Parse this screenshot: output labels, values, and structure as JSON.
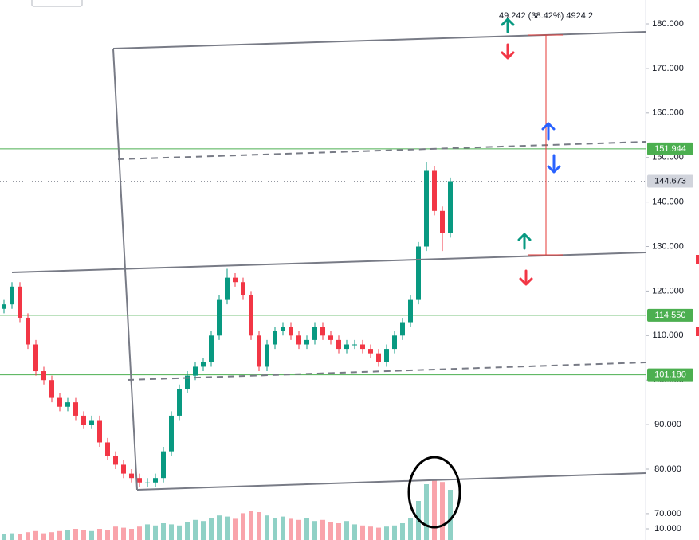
{
  "chart_data": {
    "type": "candlestick",
    "ylim": [
      64.08,
      185.37
    ],
    "yticks": [
      {
        "value": 180,
        "label": "180.000"
      },
      {
        "value": 170,
        "label": "170.000"
      },
      {
        "value": 160,
        "label": "160.000"
      },
      {
        "value": 150,
        "label": "150.000"
      },
      {
        "value": 140,
        "label": "140.000"
      },
      {
        "value": 130,
        "label": "130.000"
      },
      {
        "value": 120,
        "label": "120.000"
      },
      {
        "value": 110,
        "label": "110.000"
      },
      {
        "value": 100,
        "label": "100.000"
      },
      {
        "value": 90,
        "label": "90.000"
      },
      {
        "value": 80,
        "label": "80.000"
      },
      {
        "value": 70,
        "label": "70.000"
      }
    ],
    "vol_lim": [
      0,
      100
    ],
    "vol_ticks": [
      {
        "value": 10,
        "label": "10.000"
      }
    ],
    "up_color": "#089981",
    "down_color": "#f23645",
    "open": [
      116,
      117,
      121,
      114,
      108,
      102,
      100,
      96,
      94,
      95,
      92,
      90,
      91,
      86,
      83,
      81,
      79,
      78,
      77,
      77,
      78,
      84,
      92,
      98,
      101,
      103,
      104,
      110,
      118,
      123,
      122,
      119,
      110,
      103,
      108,
      111,
      112,
      110,
      108,
      109,
      112,
      110,
      109,
      107,
      108,
      108,
      107,
      106,
      104,
      107,
      110,
      113,
      118,
      130,
      147,
      138,
      133
    ],
    "high": [
      118,
      122,
      122,
      115,
      109,
      103,
      101,
      97,
      96,
      96,
      93,
      92,
      92,
      87,
      84,
      82,
      80,
      79,
      78,
      79,
      85,
      93,
      99,
      102,
      104,
      105,
      111,
      119,
      125,
      124,
      123,
      120,
      111,
      109,
      112,
      113,
      113,
      111,
      110,
      113,
      113,
      111,
      110,
      109,
      109,
      109,
      108,
      107,
      108,
      111,
      114,
      119,
      131,
      149,
      148,
      139,
      145.5
    ],
    "low": [
      115,
      116,
      113,
      107,
      101,
      99,
      95,
      93,
      93,
      91,
      89,
      89,
      85,
      82,
      80,
      78,
      77,
      76,
      76,
      76,
      77,
      83,
      91,
      97,
      100,
      102,
      103,
      109,
      117,
      121,
      118,
      109,
      102,
      102,
      107,
      110,
      109,
      107,
      107,
      108,
      109,
      108,
      106,
      106,
      107,
      106,
      105,
      103,
      103,
      106,
      109,
      112,
      117,
      129,
      137,
      129,
      132
    ],
    "close": [
      117,
      121,
      114,
      108,
      102,
      100,
      96,
      94,
      95,
      92,
      90,
      91,
      86,
      83,
      81,
      79,
      78,
      77,
      77,
      78,
      84,
      92,
      98,
      101,
      103,
      104,
      110,
      118,
      123,
      122,
      119,
      110,
      103,
      108,
      111,
      112,
      110,
      108,
      109,
      112,
      110,
      109,
      107,
      108,
      108,
      107,
      106,
      104,
      107,
      110,
      113,
      118,
      130,
      147,
      138,
      133,
      144.673
    ],
    "volume": [
      5,
      6,
      5,
      7,
      8,
      6,
      7,
      8,
      9,
      10,
      9,
      8,
      10,
      9,
      12,
      11,
      10,
      12,
      14,
      13,
      15,
      14,
      13,
      16,
      18,
      17,
      20,
      22,
      21,
      19,
      24,
      26,
      25,
      22,
      20,
      21,
      19,
      18,
      20,
      17,
      18,
      16,
      15,
      17,
      14,
      13,
      12,
      11,
      12,
      13,
      15,
      20,
      35,
      50,
      55,
      52,
      45
    ],
    "levels": [
      {
        "value": 151.944,
        "label": "151.944",
        "color": "#4caf50",
        "dashed": false
      },
      {
        "value": 144.673,
        "label": "144.673",
        "color": "#9598a1",
        "dashed": true
      },
      {
        "value": 114.55,
        "label": "114.550",
        "color": "#4caf50",
        "dashed": false
      },
      {
        "value": 101.18,
        "label": "101.180",
        "color": "#4caf50",
        "dashed": false
      }
    ],
    "measure_label": "49.242 (38.42%) 4924.2"
  }
}
